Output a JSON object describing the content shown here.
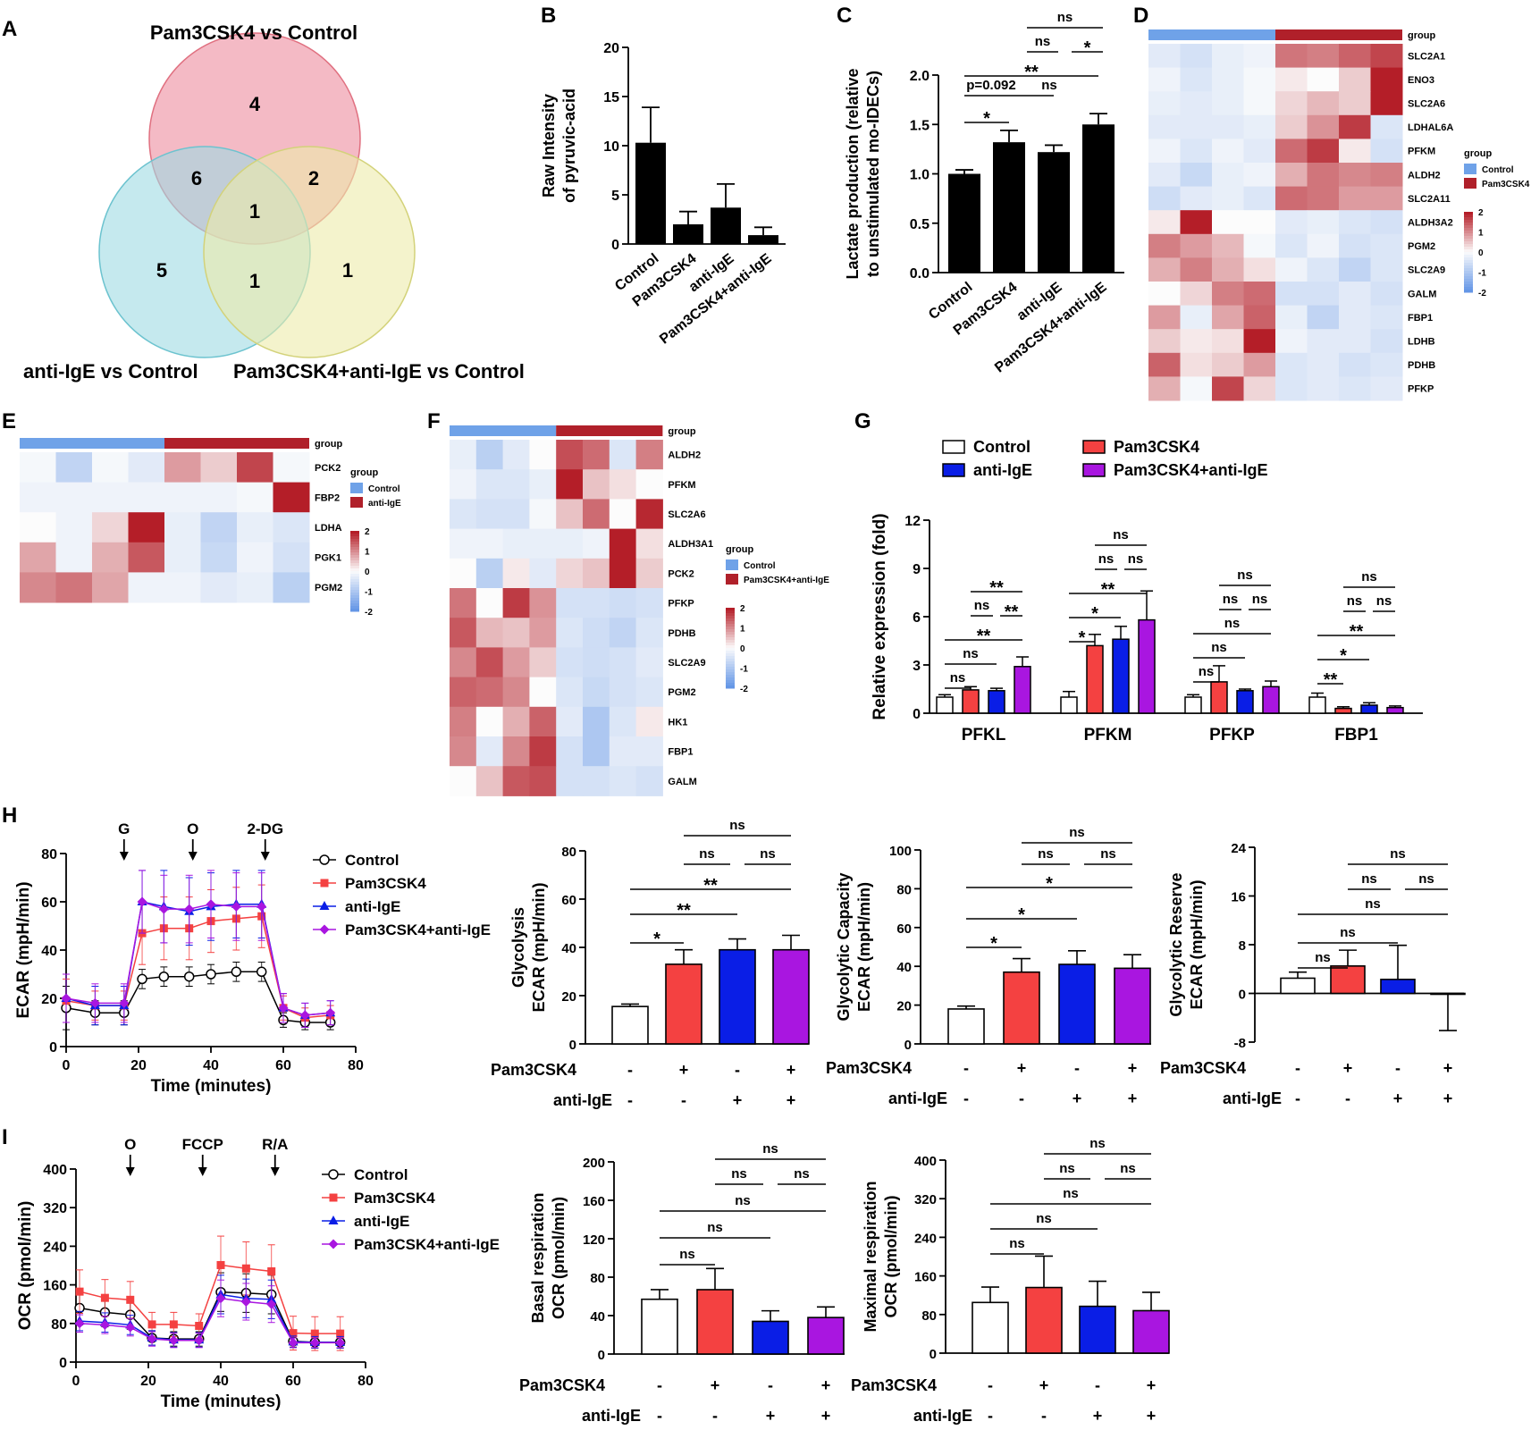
{
  "panel_letters": {
    "A": "A",
    "B": "B",
    "C": "C",
    "D": "D",
    "E": "E",
    "F": "F",
    "G": "G",
    "H": "H",
    "I": "I"
  },
  "colors": {
    "control": "#ffffff",
    "pam3csk4": "#f44141",
    "anti_ige": "#0a1ee6",
    "combo": "#a916e0",
    "bar_black": "#000000",
    "venn_red": "#f0a3b1",
    "venn_cyan": "#9edbe3",
    "venn_yellow": "#ecebaa"
  },
  "venn": {
    "labels": {
      "top": "Pam3CSK4  vs Control",
      "left": "anti-IgE  vs Control",
      "right": "Pam3CSK4+anti-IgE  vs Control"
    },
    "counts": {
      "top_only": "4",
      "left_only": "5",
      "right_only": "1",
      "top_left": "6",
      "top_right": "2",
      "left_right": "1",
      "all": "1"
    }
  },
  "chart_data": [
    {
      "panel": "B",
      "type": "bar",
      "categories": [
        "Control",
        "Pam3CSK4",
        "anti-IgE",
        "Pam3CSK4+anti-IgE"
      ],
      "values": [
        10.3,
        2.0,
        3.7,
        0.9
      ],
      "errors": [
        3.6,
        1.3,
        2.4,
        0.8
      ],
      "ylabel": [
        "Raw Intensity",
        "of pyruvic-acid"
      ],
      "ylim": [
        0,
        20
      ],
      "yticks": [
        "0",
        "5",
        "10",
        "15",
        "20"
      ]
    },
    {
      "panel": "C",
      "type": "bar",
      "categories": [
        "Control",
        "Pam3CSK4",
        "anti-IgE",
        "Pam3CSK4+anti-IgE"
      ],
      "values": [
        1.0,
        1.32,
        1.22,
        1.5
      ],
      "errors": [
        0.04,
        0.12,
        0.07,
        0.11
      ],
      "ylabel": [
        "Lactate production (relative",
        "to unstimulated mo-IDECs)"
      ],
      "ylim": [
        0,
        2.0
      ],
      "yticks": [
        "0.0",
        "0.5",
        "1.0",
        "1.5",
        "2.0"
      ],
      "annotations": [
        "*",
        "p=0.092",
        "ns",
        "**",
        "ns",
        "*",
        "ns"
      ]
    },
    {
      "panel": "D",
      "type": "heatmap",
      "genes": [
        "SLC2A1",
        "ENO3",
        "SLC2A6",
        "LDHAL6A",
        "PFKM",
        "ALDH2",
        "SLC2A11",
        "ALDH3A2",
        "PGM2",
        "SLC2A9",
        "GALM",
        "FBP1",
        "LDHB",
        "PDHB",
        "PFKP"
      ],
      "group_title": "group",
      "groups": [
        "Control",
        "Pam3CSK4"
      ],
      "scale": [
        "2",
        "1",
        "0",
        "-1",
        "-2"
      ],
      "values": [
        [
          -0.4,
          -0.6,
          -0.3,
          -0.2,
          1.4,
          1.3,
          1.6,
          1.9
        ],
        [
          -0.2,
          -0.5,
          -0.3,
          -0.1,
          0.2,
          0.0,
          0.5,
          2.3
        ],
        [
          -0.3,
          -0.4,
          -0.3,
          -0.1,
          0.4,
          0.7,
          0.5,
          2.5
        ],
        [
          -0.4,
          -0.4,
          -0.4,
          -0.3,
          0.5,
          1.1,
          2.0,
          -0.5
        ],
        [
          -0.2,
          -0.5,
          -0.2,
          -0.4,
          1.5,
          2.0,
          0.2,
          -0.6
        ],
        [
          -0.4,
          -0.8,
          -0.3,
          -0.2,
          0.8,
          1.4,
          1.2,
          1.3
        ],
        [
          -0.7,
          -0.4,
          -0.3,
          -0.5,
          1.5,
          1.4,
          1.0,
          1.0
        ],
        [
          0.2,
          2.3,
          0.0,
          0.0,
          -0.4,
          -0.3,
          -0.5,
          -0.6
        ],
        [
          1.3,
          1.0,
          0.7,
          -0.1,
          -0.5,
          -0.2,
          -0.6,
          -0.5
        ],
        [
          0.8,
          1.3,
          0.8,
          0.3,
          -0.2,
          -0.5,
          -0.9,
          -0.5
        ],
        [
          0.0,
          0.4,
          1.3,
          1.5,
          -0.6,
          -0.6,
          -0.4,
          -0.6
        ],
        [
          1.0,
          -0.3,
          0.9,
          1.6,
          -0.3,
          -0.9,
          -0.4,
          -0.5
        ],
        [
          0.5,
          0.2,
          0.3,
          2.3,
          -0.2,
          -0.4,
          -0.4,
          -0.6
        ],
        [
          1.6,
          0.3,
          0.5,
          1.0,
          -0.5,
          -0.4,
          -0.6,
          -0.5
        ],
        [
          0.8,
          -0.1,
          1.9,
          0.4,
          -0.5,
          -0.4,
          -0.5,
          -0.4
        ]
      ]
    },
    {
      "panel": "E",
      "type": "heatmap",
      "genes": [
        "PCK2",
        "FBP2",
        "LDHA",
        "PGK1",
        "PGM2"
      ],
      "group_title": "group",
      "groups": [
        "Control",
        "anti-IgE"
      ],
      "scale": [
        "2",
        "1",
        "0",
        "-1",
        "-2"
      ],
      "values": [
        [
          -0.1,
          -0.9,
          -0.1,
          -0.4,
          1.0,
          0.5,
          1.9,
          -0.1
        ],
        [
          -0.2,
          -0.2,
          -0.2,
          -0.2,
          -0.2,
          -0.2,
          -0.1,
          2.3
        ],
        [
          0.0,
          -0.2,
          0.4,
          2.3,
          -0.3,
          -0.9,
          -0.3,
          -0.5
        ],
        [
          0.9,
          -0.2,
          0.8,
          1.7,
          -0.3,
          -0.8,
          -0.2,
          -0.6
        ],
        [
          1.2,
          1.4,
          0.9,
          -0.2,
          -0.2,
          -0.4,
          -0.3,
          -1.0
        ]
      ]
    },
    {
      "panel": "F",
      "type": "heatmap",
      "genes": [
        "ALDH2",
        "PFKM",
        "SLC2A6",
        "ALDH3A1",
        "PCK2",
        "PFKP",
        "PDHB",
        "SLC2A9",
        "PGM2",
        "HK1",
        "FBP1",
        "GALM"
      ],
      "group_title": "group",
      "groups": [
        "Control",
        "Pam3CSK4+anti-IgE"
      ],
      "scale": [
        "2",
        "1",
        "0",
        "-1",
        "-2"
      ],
      "values": [
        [
          -0.3,
          -1.0,
          -0.4,
          0.0,
          1.8,
          1.5,
          -0.5,
          1.3
        ],
        [
          -0.2,
          -0.5,
          -0.5,
          -0.3,
          2.4,
          0.6,
          0.3,
          0.0
        ],
        [
          -0.5,
          -0.6,
          -0.6,
          -0.1,
          0.6,
          1.5,
          0.0,
          2.2
        ],
        [
          -0.2,
          -0.2,
          -0.3,
          -0.3,
          -0.3,
          -0.2,
          2.4,
          0.3
        ],
        [
          0.0,
          -1.0,
          0.2,
          -0.4,
          0.4,
          0.6,
          2.4,
          0.5
        ],
        [
          1.4,
          0.0,
          2.0,
          1.1,
          -0.6,
          -0.6,
          -0.7,
          -0.6
        ],
        [
          1.7,
          0.7,
          0.6,
          1.0,
          -0.5,
          -0.7,
          -0.9,
          -0.5
        ],
        [
          1.2,
          1.8,
          1.0,
          0.5,
          -0.6,
          -0.7,
          -0.6,
          -0.4
        ],
        [
          1.6,
          1.5,
          1.2,
          0.0,
          -0.5,
          -0.8,
          -0.6,
          -0.5
        ],
        [
          1.3,
          0.0,
          0.8,
          1.6,
          -0.4,
          -1.2,
          -0.5,
          0.2
        ],
        [
          1.2,
          -0.4,
          1.2,
          2.0,
          -0.6,
          -1.2,
          -0.4,
          -0.4
        ],
        [
          0.0,
          0.6,
          1.7,
          1.8,
          -0.6,
          -0.6,
          -0.5,
          -0.6
        ]
      ]
    },
    {
      "panel": "G",
      "type": "bar",
      "groups": [
        "PFKL",
        "PFKM",
        "PFKP",
        "FBP1"
      ],
      "series": [
        {
          "name": "Control",
          "values": [
            1.0,
            1.0,
            1.0,
            1.0
          ],
          "errors": [
            0.15,
            0.35,
            0.15,
            0.25
          ]
        },
        {
          "name": "Pam3CSK4",
          "values": [
            1.45,
            4.2,
            1.95,
            0.3
          ],
          "errors": [
            0.2,
            0.7,
            1.0,
            0.1
          ]
        },
        {
          "name": "anti-IgE",
          "values": [
            1.4,
            4.6,
            1.4,
            0.5
          ],
          "errors": [
            0.15,
            0.8,
            0.1,
            0.15
          ]
        },
        {
          "name": "Pam3CSK4+anti-IgE",
          "values": [
            2.9,
            5.8,
            1.65,
            0.35
          ],
          "errors": [
            0.6,
            1.8,
            0.35,
            0.1
          ]
        }
      ],
      "ylabel": "Relative expression (fold)",
      "ylim": [
        0,
        12
      ],
      "yticks": [
        "0",
        "3",
        "6",
        "9",
        "12"
      ],
      "annotations": {
        "PFKL": [
          "ns",
          "ns",
          "**",
          "ns",
          "**",
          "**"
        ],
        "PFKM": [
          "*",
          "*",
          "**",
          "ns",
          "ns",
          "ns"
        ],
        "PFKP": [
          "ns",
          "ns",
          "ns",
          "ns",
          "ns",
          "ns"
        ],
        "FBP1": [
          "**",
          "*",
          "**",
          "ns",
          "ns",
          "ns"
        ]
      }
    },
    {
      "panel": "H1",
      "type": "line",
      "x": [
        0,
        8,
        16,
        21,
        27,
        34,
        40,
        47,
        54,
        60,
        66,
        73
      ],
      "series": [
        {
          "name": "Control",
          "values": [
            16,
            14,
            14,
            28,
            29,
            29,
            30,
            31,
            31,
            11,
            10,
            10
          ],
          "errors": [
            9,
            5,
            5,
            4,
            4,
            4,
            4,
            4,
            4,
            3,
            3,
            3
          ]
        },
        {
          "name": "Pam3CSK4",
          "values": [
            19,
            17,
            17,
            47,
            49,
            49,
            52,
            53,
            54,
            16,
            12,
            13
          ],
          "errors": [
            9,
            6,
            6,
            13,
            13,
            13,
            13,
            13,
            13,
            5,
            4,
            4
          ]
        },
        {
          "name": "anti-IgE",
          "values": [
            20,
            17,
            17,
            60,
            58,
            56,
            58,
            59,
            59,
            16,
            13,
            14
          ],
          "errors": [
            10,
            8,
            8,
            13,
            15,
            14,
            14,
            14,
            14,
            6,
            5,
            5
          ]
        },
        {
          "name": "Pam3CSK4+anti-IgE",
          "values": [
            20,
            18,
            18,
            60,
            57,
            57,
            59,
            58,
            58,
            16,
            13,
            14
          ],
          "errors": [
            10,
            8,
            8,
            13,
            14,
            14,
            14,
            14,
            14,
            6,
            5,
            5
          ]
        }
      ],
      "xlabel": "Time (minutes)",
      "ylabel": "ECAR (mpH/min)",
      "xlim": [
        0,
        80
      ],
      "ylim": [
        0,
        80
      ],
      "xticks": [
        "0",
        "20",
        "40",
        "60",
        "80"
      ],
      "yticks": [
        "0",
        "20",
        "40",
        "60",
        "80"
      ],
      "injections": [
        {
          "label": "G",
          "x": 16
        },
        {
          "label": "O",
          "x": 35
        },
        {
          "label": "2-DG",
          "x": 55
        }
      ]
    },
    {
      "panel": "H2",
      "type": "bar",
      "categories": [
        "Control",
        "Pam3CSK4",
        "anti-IgE",
        "Pam3CSK4+anti-IgE"
      ],
      "values": [
        15.5,
        33,
        39,
        39
      ],
      "errors": [
        1,
        6,
        4.5,
        6
      ],
      "ylabel": [
        "Glycolysis",
        "ECAR (mpH/min)"
      ],
      "ylim": [
        0,
        80
      ],
      "yticks": [
        "0",
        "20",
        "40",
        "60",
        "80"
      ],
      "annotations": [
        "*",
        "**",
        "**",
        "ns",
        "ns",
        "ns"
      ]
    },
    {
      "panel": "H3",
      "type": "bar",
      "categories": [
        "Control",
        "Pam3CSK4",
        "anti-IgE",
        "Pam3CSK4+anti-IgE"
      ],
      "values": [
        18,
        37,
        41,
        39
      ],
      "errors": [
        1.5,
        7,
        7,
        7
      ],
      "ylabel": [
        "Glycolytic Capacity",
        "ECAR (mpH/min)"
      ],
      "ylim": [
        0,
        100
      ],
      "yticks": [
        "0",
        "20",
        "40",
        "60",
        "80",
        "100"
      ],
      "annotations": [
        "*",
        "*",
        "*",
        "ns",
        "ns",
        "ns"
      ]
    },
    {
      "panel": "H4",
      "type": "bar",
      "categories": [
        "Control",
        "Pam3CSK4",
        "anti-IgE",
        "Pam3CSK4+anti-IgE"
      ],
      "values": [
        2.5,
        4.5,
        2.3,
        -0.1
      ],
      "errors": [
        1,
        2.6,
        5.6,
        6
      ],
      "ylabel": [
        "Glycolytic Reserve",
        "ECAR (mpH/min)"
      ],
      "ylim": [
        -8,
        24
      ],
      "yticks": [
        "-8",
        "0",
        "8",
        "16",
        "24"
      ],
      "annotations": [
        "ns",
        "ns",
        "ns",
        "ns",
        "ns",
        "ns"
      ]
    },
    {
      "panel": "I1",
      "type": "line",
      "x": [
        1,
        8,
        15,
        21,
        27,
        34,
        40,
        47,
        54,
        60,
        66,
        73
      ],
      "series": [
        {
          "name": "Control",
          "values": [
            112,
            103,
            98,
            50,
            48,
            48,
            145,
            143,
            140,
            43,
            41,
            41
          ],
          "errors": [
            35,
            30,
            30,
            15,
            15,
            15,
            40,
            40,
            40,
            12,
            12,
            12
          ]
        },
        {
          "name": "Pam3CSK4",
          "values": [
            146,
            133,
            129,
            78,
            78,
            75,
            201,
            194,
            188,
            60,
            59,
            59
          ],
          "errors": [
            45,
            38,
            38,
            25,
            25,
            25,
            60,
            55,
            55,
            35,
            35,
            35
          ]
        },
        {
          "name": "anti-IgE",
          "values": [
            85,
            82,
            77,
            50,
            46,
            46,
            140,
            132,
            130,
            42,
            41,
            41
          ],
          "errors": [
            20,
            20,
            20,
            15,
            15,
            15,
            40,
            40,
            40,
            12,
            12,
            12
          ]
        },
        {
          "name": "Pam3CSK4+anti-IgE",
          "values": [
            80,
            77,
            72,
            48,
            45,
            45,
            132,
            125,
            120,
            40,
            40,
            40
          ],
          "errors": [
            18,
            18,
            18,
            15,
            15,
            15,
            38,
            38,
            38,
            10,
            10,
            10
          ]
        }
      ],
      "xlabel": "Time (minutes)",
      "ylabel": "OCR (pmol/min)",
      "xlim": [
        0,
        80
      ],
      "ylim": [
        0,
        400
      ],
      "xticks": [
        "0",
        "20",
        "40",
        "60",
        "80"
      ],
      "yticks": [
        "0",
        "80",
        "160",
        "240",
        "320",
        "400"
      ],
      "injections": [
        {
          "label": "O",
          "x": 15
        },
        {
          "label": "FCCP",
          "x": 35
        },
        {
          "label": "R/A",
          "x": 55
        }
      ]
    },
    {
      "panel": "I2",
      "type": "bar",
      "categories": [
        "Control",
        "Pam3CSK4",
        "anti-IgE",
        "Pam3CSK4+anti-IgE"
      ],
      "values": [
        57,
        67,
        34,
        38
      ],
      "errors": [
        10,
        22,
        11,
        11
      ],
      "ylabel": [
        "Basal respiration",
        "OCR (pmol/min)"
      ],
      "ylim": [
        0,
        200
      ],
      "yticks": [
        "0",
        "40",
        "80",
        "120",
        "160",
        "200"
      ],
      "annotations": [
        "ns",
        "ns",
        "ns",
        "ns",
        "ns",
        "ns"
      ]
    },
    {
      "panel": "I3",
      "type": "bar",
      "categories": [
        "Control",
        "Pam3CSK4",
        "anti-IgE",
        "Pam3CSK4+anti-IgE"
      ],
      "values": [
        105,
        136,
        97,
        88
      ],
      "errors": [
        32,
        65,
        52,
        38
      ],
      "ylabel": [
        "Maximal respiration",
        "OCR (pmol/min)"
      ],
      "ylim": [
        0,
        400
      ],
      "yticks": [
        "0",
        "80",
        "160",
        "240",
        "320",
        "400"
      ],
      "annotations": [
        "ns",
        "ns",
        "ns",
        "ns",
        "ns",
        "ns"
      ]
    }
  ],
  "treatment_table": {
    "row1_label": "Pam3CSK4",
    "row1": [
      "-",
      "+",
      "-",
      "+"
    ],
    "row2_label": "anti-IgE",
    "row2": [
      "-",
      "-",
      "+",
      "+"
    ]
  }
}
